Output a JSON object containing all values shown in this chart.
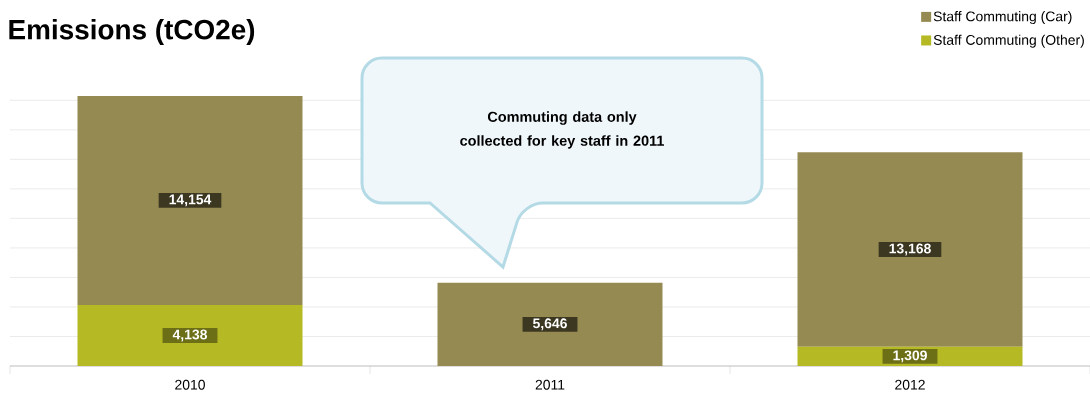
{
  "chart_data": {
    "type": "bar",
    "title": "Emissions (tCO2e)",
    "stacked": true,
    "categories": [
      "2010",
      "2011",
      "2012"
    ],
    "series": [
      {
        "name": "Staff Commuting (Other)",
        "color": "#b5b924",
        "values": [
          4138,
          null,
          1309
        ],
        "value_labels": [
          "4,138",
          null,
          "1,309"
        ]
      },
      {
        "name": "Staff Commuting (Car)",
        "color": "#968a53",
        "values": [
          14154,
          5646,
          13168
        ],
        "value_labels": [
          "14,154",
          "5,646",
          "13,168"
        ]
      }
    ],
    "tick_labels": "x",
    "grid": "y",
    "legend": "top right",
    "annotations": [
      "Commuting data only collected for key staff in 2011"
    ]
  }
}
